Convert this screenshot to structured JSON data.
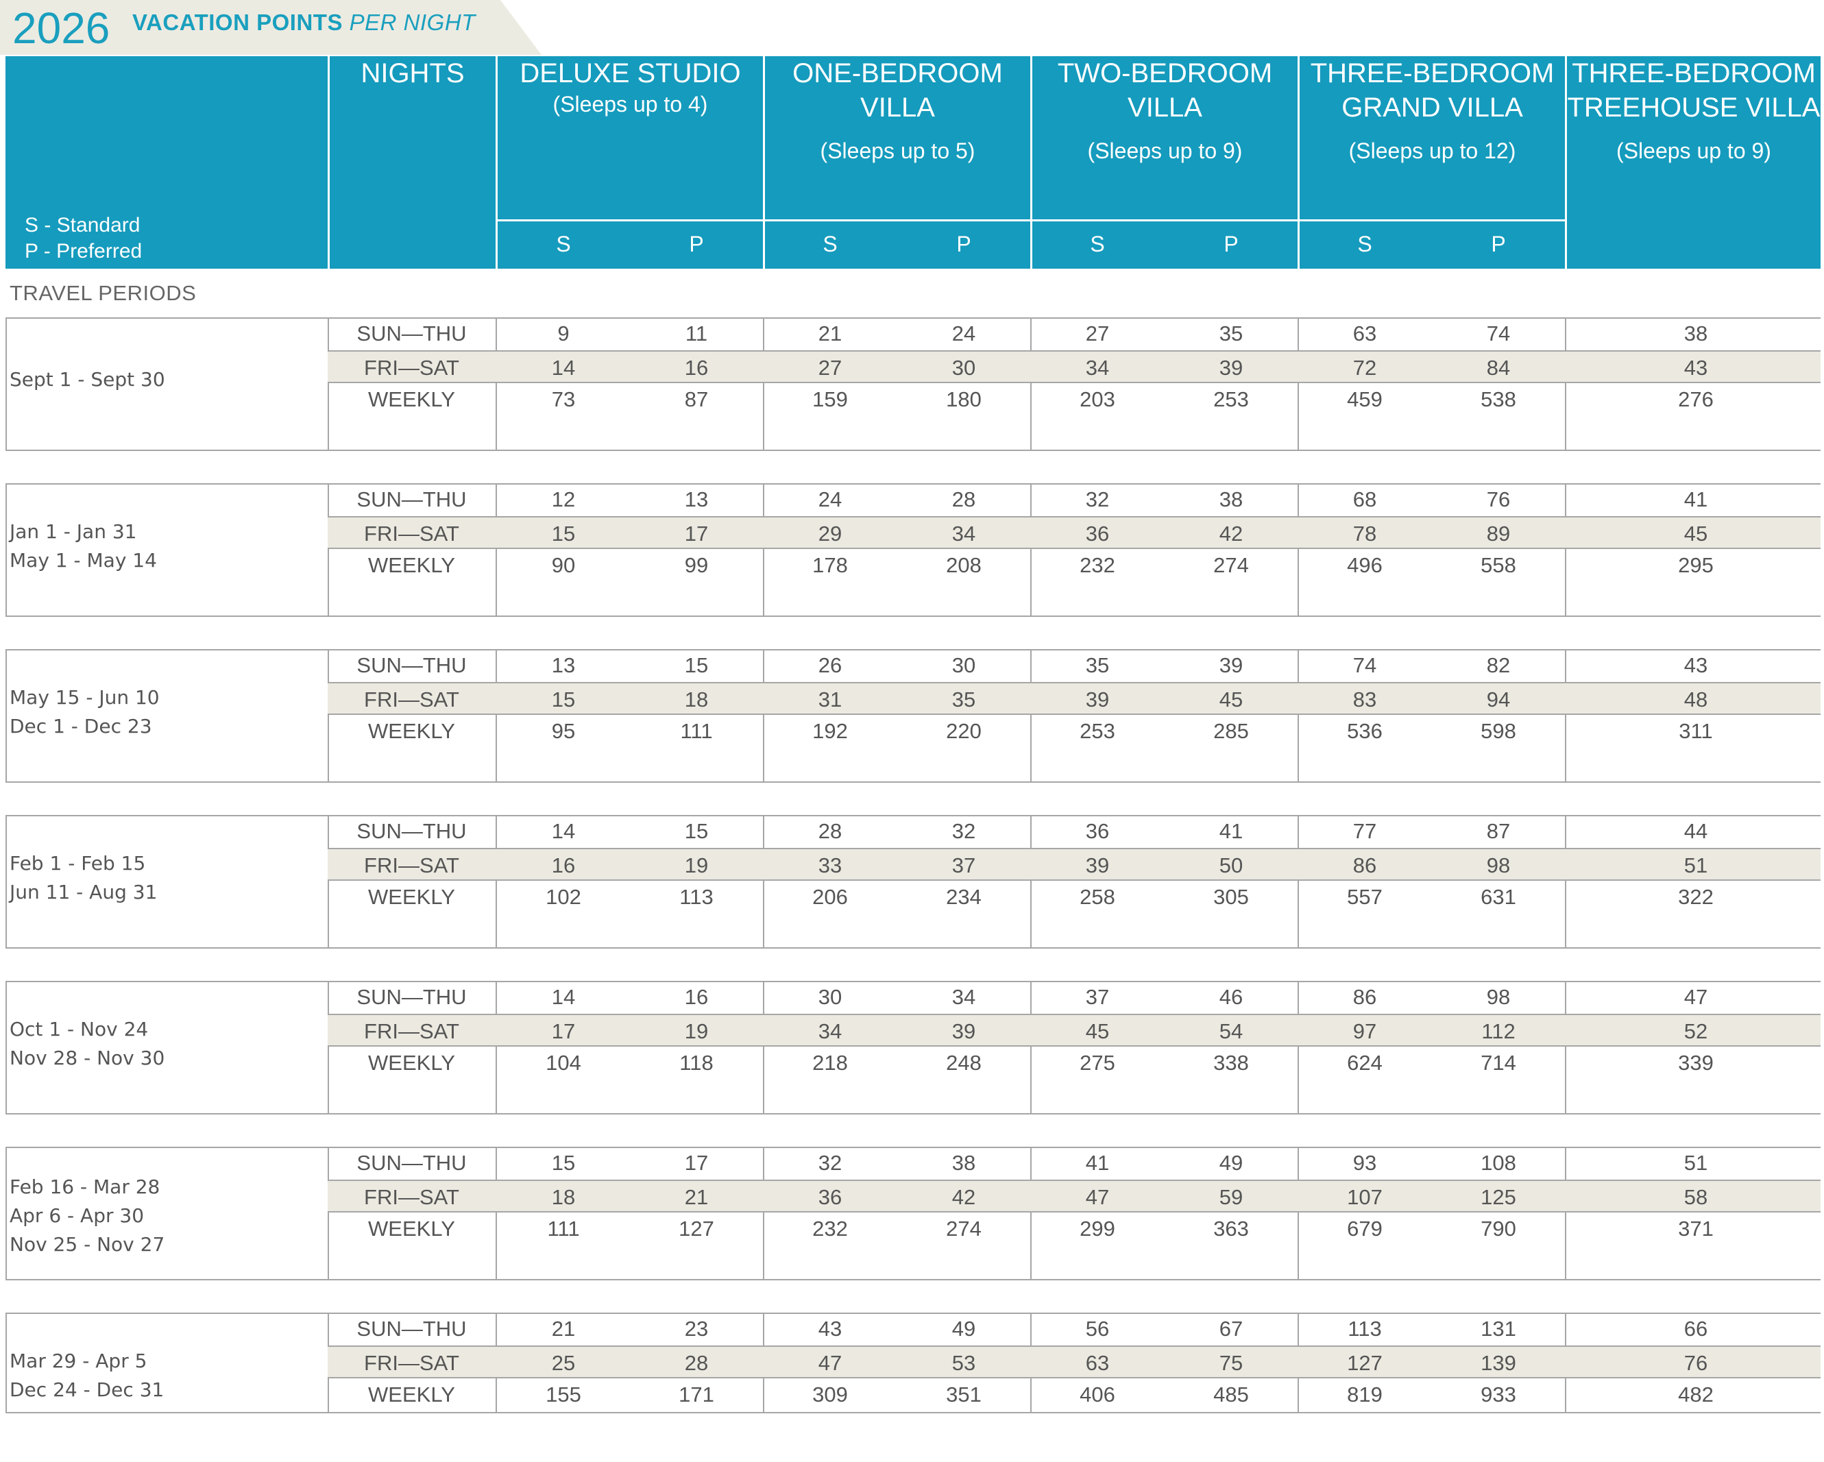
{
  "title": {
    "year": "2026",
    "label_bold": "VACATION POINTS",
    "label_italic": "PER NIGHT"
  },
  "legend": {
    "standard": "S - Standard",
    "preferred": "P - Preferred"
  },
  "columns": {
    "nights": "NIGHTS",
    "deluxe": {
      "name": "DELUXE STUDIO",
      "sleeps": "(Sleeps up to 4)"
    },
    "one_bed": {
      "line1": "ONE-BEDROOM",
      "line2": "VILLA",
      "sleeps": "(Sleeps up to 5)"
    },
    "two_bed": {
      "line1": "TWO-BEDROOM",
      "line2": "VILLA",
      "sleeps": "(Sleeps up to 9)"
    },
    "three_grand": {
      "line1": "THREE-BEDROOM",
      "line2": "GRAND VILLA",
      "sleeps": "(Sleeps up to 12)"
    },
    "three_tree": {
      "line1": "THREE-BEDROOM",
      "line2": "TREEHOUSE VILLA",
      "sleeps": "(Sleeps up to 9)"
    },
    "s": "S",
    "p": "P"
  },
  "travel_periods_label": "TRAVEL PERIODS",
  "night_labels": [
    "SUN—THU",
    "FRI—SAT",
    "WEEKLY"
  ],
  "blocks": [
    {
      "periods": [
        "Sept 1 - Sept 30"
      ],
      "rows": [
        [
          "9",
          "11",
          "21",
          "24",
          "27",
          "35",
          "63",
          "74",
          "38"
        ],
        [
          "14",
          "16",
          "27",
          "30",
          "34",
          "39",
          "72",
          "84",
          "43"
        ],
        [
          "73",
          "87",
          "159",
          "180",
          "203",
          "253",
          "459",
          "538",
          "276"
        ]
      ]
    },
    {
      "periods": [
        "Jan 1 - Jan 31",
        "May 1 - May 14"
      ],
      "rows": [
        [
          "12",
          "13",
          "24",
          "28",
          "32",
          "38",
          "68",
          "76",
          "41"
        ],
        [
          "15",
          "17",
          "29",
          "34",
          "36",
          "42",
          "78",
          "89",
          "45"
        ],
        [
          "90",
          "99",
          "178",
          "208",
          "232",
          "274",
          "496",
          "558",
          "295"
        ]
      ]
    },
    {
      "periods": [
        "May 15 - Jun 10",
        "Dec 1 - Dec 23"
      ],
      "rows": [
        [
          "13",
          "15",
          "26",
          "30",
          "35",
          "39",
          "74",
          "82",
          "43"
        ],
        [
          "15",
          "18",
          "31",
          "35",
          "39",
          "45",
          "83",
          "94",
          "48"
        ],
        [
          "95",
          "111",
          "192",
          "220",
          "253",
          "285",
          "536",
          "598",
          "311"
        ]
      ]
    },
    {
      "periods": [
        "Feb 1 - Feb 15",
        "Jun 11 - Aug 31"
      ],
      "rows": [
        [
          "14",
          "15",
          "28",
          "32",
          "36",
          "41",
          "77",
          "87",
          "44"
        ],
        [
          "16",
          "19",
          "33",
          "37",
          "39",
          "50",
          "86",
          "98",
          "51"
        ],
        [
          "102",
          "113",
          "206",
          "234",
          "258",
          "305",
          "557",
          "631",
          "322"
        ]
      ]
    },
    {
      "periods": [
        "Oct 1 - Nov 24",
        "Nov 28 - Nov 30"
      ],
      "rows": [
        [
          "14",
          "16",
          "30",
          "34",
          "37",
          "46",
          "86",
          "98",
          "47"
        ],
        [
          "17",
          "19",
          "34",
          "39",
          "45",
          "54",
          "97",
          "112",
          "52"
        ],
        [
          "104",
          "118",
          "218",
          "248",
          "275",
          "338",
          "624",
          "714",
          "339"
        ]
      ]
    },
    {
      "periods": [
        "Feb 16 - Mar 28",
        "Apr 6 - Apr 30",
        "Nov 25 - Nov 27"
      ],
      "rows": [
        [
          "15",
          "17",
          "32",
          "38",
          "41",
          "49",
          "93",
          "108",
          "51"
        ],
        [
          "18",
          "21",
          "36",
          "42",
          "47",
          "59",
          "107",
          "125",
          "58"
        ],
        [
          "111",
          "127",
          "232",
          "274",
          "299",
          "363",
          "679",
          "790",
          "371"
        ]
      ]
    },
    {
      "periods": [
        "Mar 29 - Apr 5",
        "Dec 24 - Dec 31"
      ],
      "rows": [
        [
          "21",
          "23",
          "43",
          "49",
          "56",
          "67",
          "113",
          "131",
          "66"
        ],
        [
          "25",
          "28",
          "47",
          "53",
          "63",
          "75",
          "127",
          "139",
          "76"
        ],
        [
          "155",
          "171",
          "309",
          "351",
          "406",
          "485",
          "819",
          "933",
          "482"
        ]
      ]
    }
  ]
}
